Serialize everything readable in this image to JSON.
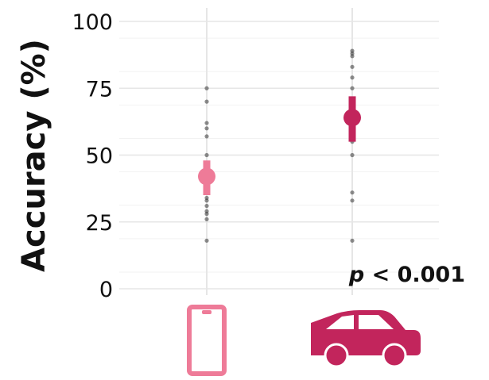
{
  "chart_data": {
    "type": "scatter",
    "title": "",
    "ylabel": "Accuracy (%)",
    "ylim": [
      0,
      100
    ],
    "yticks": [
      "0",
      "25",
      "50",
      "75",
      "100"
    ],
    "categories": [
      "phone-icon",
      "car-icon"
    ],
    "grid": true,
    "annotation": {
      "italic": "p",
      "text": " < 0.001"
    },
    "series": [
      {
        "category": "phone-icon",
        "color": "#ee7b98",
        "mean": 42,
        "ci": [
          35,
          48
        ],
        "points": [
          18,
          26,
          28,
          29,
          31,
          33,
          34,
          36,
          38,
          40,
          44,
          47,
          50,
          57,
          60,
          62,
          70,
          75
        ]
      },
      {
        "category": "car-icon",
        "color": "#c2255c",
        "mean": 64,
        "ci": [
          55,
          72
        ],
        "points": [
          18,
          33,
          36,
          50,
          55,
          60,
          63,
          65,
          67,
          70,
          75,
          79,
          83,
          87,
          88,
          89
        ]
      }
    ]
  }
}
